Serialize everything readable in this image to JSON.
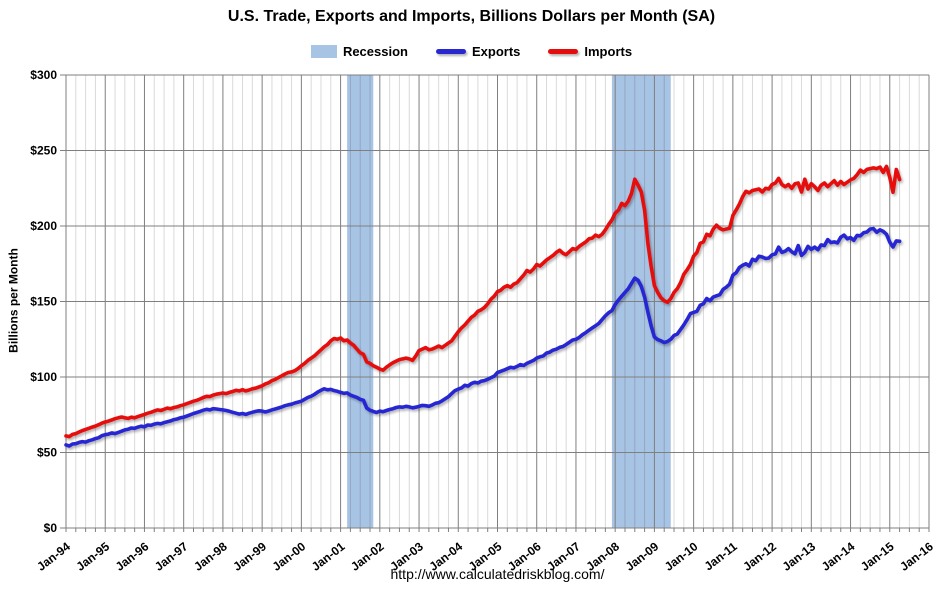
{
  "header": {
    "title": "U.S. Trade, Exports and Imports, Billions Dollars per Month (SA)"
  },
  "legend": {
    "recession_label": "Recession",
    "exports_label": "Exports",
    "imports_label": "Imports"
  },
  "source_url": "http://www.calculatedriskblog.com/",
  "chart_data": {
    "type": "line",
    "title": "U.S. Trade, Exports and Imports, Billions Dollars per Month (SA)",
    "xlabel": "",
    "ylabel": "Billions per Month",
    "ylim": [
      0,
      300
    ],
    "grid": "major-gray-horizontal-and-yearly-vertical-with-quarterly-minor",
    "legend_position": "top-center",
    "start_month": "1994-01",
    "end_month": "2015-04",
    "x_ticks": [
      "Jan-94",
      "Jan-95",
      "Jan-96",
      "Jan-97",
      "Jan-98",
      "Jan-99",
      "Jan-00",
      "Jan-01",
      "Jan-02",
      "Jan-03",
      "Jan-04",
      "Jan-05",
      "Jan-06",
      "Jan-07",
      "Jan-08",
      "Jan-09",
      "Jan-10",
      "Jan-11",
      "Jan-12",
      "Jan-13",
      "Jan-14",
      "Jan-15",
      "Jan-16"
    ],
    "y_ticks": [
      "$0",
      "$50",
      "$100",
      "$150",
      "$200",
      "$250",
      "$300"
    ],
    "colors": {
      "exports": "#2828D2",
      "imports": "#E60C0C",
      "recession_band": "#A8C4E4",
      "major_grid": "#7F7F7F",
      "minor_grid": "rgba(0,0,0,0.15)"
    },
    "recessions": [
      {
        "start": "2001-03",
        "end": "2001-11"
      },
      {
        "start": "2007-12",
        "end": "2009-06"
      }
    ],
    "series": [
      {
        "name": "Exports",
        "values": [
          55.0,
          54.3,
          55.6,
          55.8,
          56.7,
          57.2,
          56.9,
          57.8,
          58.4,
          59.2,
          59.8,
          61.2,
          61.8,
          62.2,
          63.0,
          62.5,
          63.3,
          64.1,
          65.0,
          65.4,
          66.2,
          66.0,
          66.8,
          67.4,
          67.0,
          68.2,
          68.0,
          68.8,
          69.3,
          69.0,
          69.8,
          70.3,
          70.9,
          71.8,
          72.2,
          73.0,
          73.4,
          74.2,
          75.0,
          75.8,
          76.5,
          77.2,
          78.0,
          78.6,
          78.2,
          79.0,
          78.8,
          78.5,
          78.2,
          77.8,
          77.3,
          76.6,
          76.0,
          75.4,
          75.8,
          75.2,
          76.0,
          76.6,
          77.2,
          77.6,
          77.4,
          76.8,
          77.5,
          78.2,
          78.8,
          79.5,
          80.2,
          81.0,
          81.6,
          82.0,
          82.8,
          83.4,
          84.0,
          85.2,
          86.5,
          87.3,
          88.5,
          90.0,
          91.2,
          92.2,
          91.5,
          91.8,
          91.0,
          90.5,
          89.8,
          89.2,
          89.5,
          88.0,
          87.2,
          86.5,
          85.2,
          84.6,
          79.5,
          78.0,
          77.2,
          76.5,
          77.4,
          77.0,
          77.8,
          78.5,
          79.0,
          79.8,
          80.2,
          80.0,
          80.6,
          80.2,
          79.6,
          80.0,
          80.5,
          81.2,
          81.0,
          80.6,
          81.4,
          82.6,
          83.0,
          84.2,
          85.6,
          87.0,
          89.0,
          91.0,
          92.0,
          92.8,
          94.5,
          94.0,
          95.6,
          96.5,
          96.0,
          97.2,
          97.6,
          98.5,
          99.6,
          100.5,
          103.0,
          103.8,
          104.6,
          105.5,
          106.4,
          106.0,
          107.0,
          108.2,
          107.6,
          109.0,
          110.0,
          111.0,
          112.5,
          113.4,
          114.0,
          115.8,
          116.5,
          117.8,
          118.4,
          119.6,
          120.2,
          121.5,
          123.0,
          124.5,
          125.0,
          126.2,
          128.0,
          129.4,
          131.0,
          132.5,
          134.0,
          135.5,
          138.0,
          140.5,
          142.5,
          144.0,
          148.0,
          151.0,
          153.5,
          156.0,
          158.5,
          162.0,
          165.5,
          164.0,
          160.0,
          153.0,
          143.0,
          134.0,
          126.5,
          124.8,
          124.0,
          122.8,
          123.5,
          125.0,
          127.5,
          128.5,
          131.5,
          134.5,
          138.0,
          142.0,
          142.8,
          143.5,
          147.5,
          148.5,
          152.0,
          150.5,
          153.0,
          153.8,
          154.5,
          158.0,
          159.5,
          161.5,
          167.5,
          169.0,
          172.5,
          174.0,
          175.0,
          173.5,
          178.0,
          177.0,
          180.0,
          179.5,
          178.5,
          178.8,
          180.9,
          181.5,
          186.0,
          182.5,
          183.3,
          185.0,
          183.0,
          181.5,
          187.0,
          180.5,
          182.5,
          186.5,
          184.5,
          186.0,
          184.3,
          187.5,
          187.0,
          191.0,
          189.0,
          189.5,
          188.8,
          192.5,
          194.0,
          191.5,
          192.3,
          190.5,
          193.8,
          193.5,
          195.5,
          196.0,
          198.0,
          198.3,
          195.8,
          197.5,
          196.4,
          194.5,
          189.3,
          186.1,
          190.1,
          189.9
        ]
      },
      {
        "name": "Imports",
        "values": [
          61.0,
          60.5,
          62.0,
          62.5,
          63.6,
          64.5,
          65.3,
          66.0,
          66.8,
          67.5,
          68.4,
          69.5,
          70.2,
          70.8,
          71.6,
          72.4,
          73.0,
          73.5,
          73.0,
          72.6,
          73.4,
          73.0,
          73.8,
          74.5,
          75.2,
          76.0,
          76.6,
          77.5,
          78.2,
          77.8,
          78.6,
          79.4,
          79.0,
          79.8,
          80.2,
          81.0,
          81.6,
          82.4,
          83.2,
          84.0,
          84.6,
          85.4,
          86.4,
          87.2,
          87.0,
          88.0,
          88.6,
          89.0,
          89.4,
          89.0,
          89.8,
          90.4,
          91.2,
          90.8,
          91.6,
          90.8,
          91.4,
          92.2,
          92.6,
          93.4,
          94.2,
          95.4,
          96.2,
          97.6,
          98.4,
          99.6,
          100.8,
          102.0,
          103.0,
          103.4,
          104.2,
          105.6,
          107.5,
          109.0,
          111.0,
          112.5,
          114.0,
          116.0,
          118.0,
          120.0,
          121.5,
          124.0,
          125.5,
          125.0,
          125.8,
          124.0,
          124.5,
          122.5,
          121.0,
          118.5,
          116.0,
          115.0,
          110.0,
          109.0,
          107.5,
          106.5,
          105.2,
          104.5,
          106.5,
          108.0,
          109.5,
          110.5,
          111.5,
          112.0,
          112.5,
          112.0,
          111.0,
          114.0,
          117.5,
          118.5,
          119.5,
          118.0,
          118.5,
          119.5,
          120.5,
          119.5,
          121.0,
          122.5,
          124.0,
          127.0,
          130.0,
          132.5,
          134.5,
          137.0,
          139.5,
          141.0,
          143.5,
          144.5,
          146.0,
          148.5,
          151.5,
          153.5,
          156.5,
          157.5,
          159.5,
          160.5,
          159.5,
          161.5,
          162.5,
          165.0,
          167.5,
          170.5,
          169.5,
          171.5,
          174.5,
          173.5,
          175.5,
          177.5,
          179.0,
          180.5,
          182.5,
          184.0,
          182.0,
          181.0,
          183.0,
          185.0,
          184.5,
          186.5,
          188.0,
          189.5,
          191.5,
          192.0,
          194.0,
          193.0,
          194.5,
          197.5,
          201.0,
          204.0,
          208.5,
          210.5,
          215.0,
          213.5,
          216.5,
          221.5,
          231.0,
          227.0,
          222.5,
          210.5,
          188.5,
          173.5,
          160.5,
          156.0,
          152.5,
          150.5,
          149.5,
          152.0,
          156.0,
          158.5,
          162.5,
          168.0,
          171.0,
          174.5,
          180.0,
          182.5,
          188.5,
          189.5,
          194.5,
          193.5,
          198.0,
          200.5,
          198.5,
          197.5,
          198.0,
          198.5,
          207.0,
          210.5,
          214.5,
          219.5,
          223.0,
          222.0,
          223.5,
          224.0,
          224.5,
          222.5,
          225.0,
          224.5,
          227.5,
          228.5,
          231.5,
          227.5,
          226.0,
          227.5,
          225.0,
          228.0,
          228.5,
          222.5,
          231.0,
          224.5,
          228.0,
          226.0,
          223.5,
          227.0,
          228.5,
          226.0,
          228.0,
          230.0,
          227.0,
          229.5,
          227.5,
          229.0,
          230.5,
          231.5,
          234.0,
          237.0,
          235.5,
          237.5,
          238.0,
          238.5,
          238.0,
          239.0,
          235.5,
          239.5,
          232.1,
          222.4,
          237.4,
          230.8
        ]
      }
    ]
  }
}
